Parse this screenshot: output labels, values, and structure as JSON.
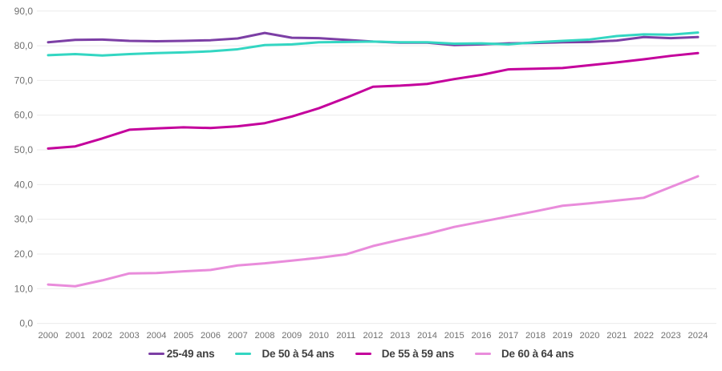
{
  "chart_data": {
    "type": "line",
    "title": "",
    "xlabel": "",
    "ylabel": "",
    "x": [
      "2000",
      "2001",
      "2002",
      "2003",
      "2004",
      "2005",
      "2006",
      "2007",
      "2008",
      "2009",
      "2010",
      "2011",
      "2012",
      "2013",
      "2014",
      "2015",
      "2016",
      "2017",
      "2018",
      "2019",
      "2020",
      "2021",
      "2022",
      "2023",
      "2024"
    ],
    "ylim": [
      0,
      90
    ],
    "y_tick_step": 10,
    "y_tick_labels": [
      "0,0",
      "10,0",
      "20,0",
      "30,0",
      "40,0",
      "50,0",
      "60,0",
      "70,0",
      "80,0",
      "90,0"
    ],
    "grid": "horizontal",
    "legend_position": "bottom",
    "grid_color": "#EBEBEB",
    "axis_text_color": "#707070",
    "legend_text_color": "#3F3F3F",
    "series": [
      {
        "id": "25-49",
        "name": "25-49 ans",
        "color": "#7C3FA5",
        "values": [
          81.0,
          81.7,
          81.8,
          81.4,
          81.3,
          81.4,
          81.6,
          82.1,
          83.7,
          82.3,
          82.2,
          81.7,
          81.2,
          80.9,
          80.9,
          80.2,
          80.4,
          80.7,
          80.8,
          81.0,
          81.1,
          81.5,
          82.5,
          82.2,
          82.5
        ]
      },
      {
        "id": "50-54",
        "name": "De 50 à 54 ans",
        "color": "#33D6C2",
        "values": [
          77.3,
          77.6,
          77.2,
          77.6,
          77.9,
          78.1,
          78.4,
          79.0,
          80.2,
          80.4,
          81.0,
          81.1,
          81.2,
          81.0,
          81.0,
          80.6,
          80.7,
          80.4,
          81.0,
          81.4,
          81.8,
          82.8,
          83.3,
          83.2,
          83.8
        ]
      },
      {
        "id": "55-59",
        "name": "De 55 à 59 ans",
        "color": "#C4009C",
        "values": [
          50.4,
          51.0,
          53.3,
          55.8,
          56.2,
          56.5,
          56.3,
          56.8,
          57.7,
          59.6,
          62.0,
          65.0,
          68.2,
          68.5,
          69.0,
          70.4,
          71.6,
          73.2,
          73.4,
          73.6,
          74.4,
          75.2,
          76.1,
          77.1,
          77.9
        ]
      },
      {
        "id": "60-64",
        "name": "De 60 à 64 ans",
        "color": "#E98CDB",
        "values": [
          11.2,
          10.7,
          12.4,
          14.4,
          14.5,
          15.0,
          15.4,
          16.7,
          17.3,
          18.1,
          18.9,
          19.9,
          22.3,
          24.1,
          25.8,
          27.8,
          29.3,
          30.8,
          32.3,
          33.9,
          34.6,
          35.4,
          36.2,
          39.3,
          42.4
        ]
      }
    ]
  }
}
